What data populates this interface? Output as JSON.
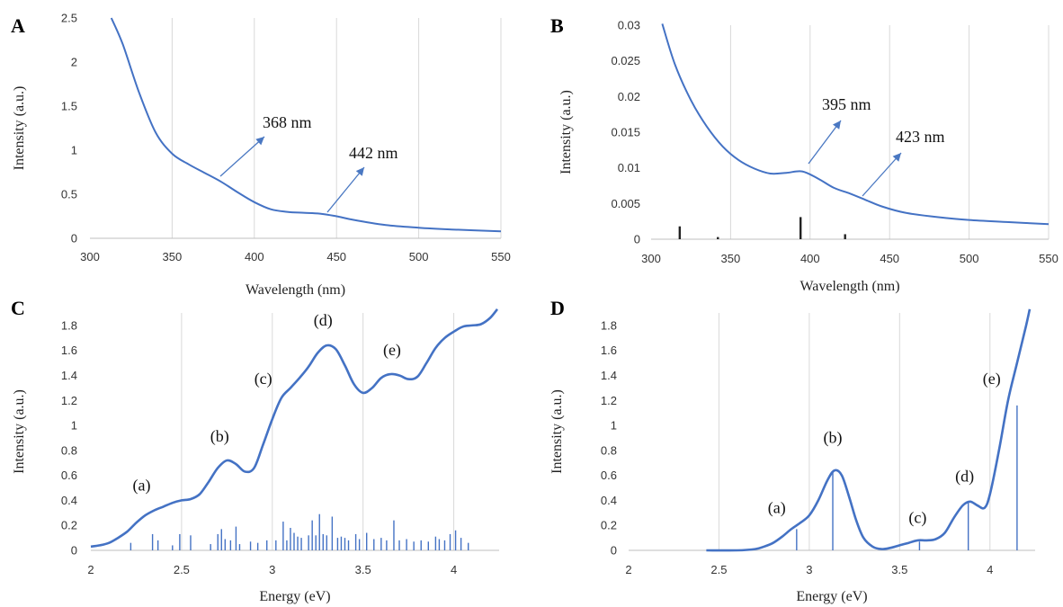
{
  "chart_data": [
    {
      "panel": "A",
      "type": "line",
      "xlabel": "Wavelength (nm)",
      "ylabel": "Intensity (a.u.)",
      "xlim": [
        300,
        550
      ],
      "ylim": [
        0,
        2.5
      ],
      "xticks": [
        300,
        350,
        400,
        450,
        500,
        550
      ],
      "yticks": [
        0,
        0.5,
        1,
        1.5,
        2,
        2.5
      ],
      "xtick_labels": [
        "300",
        "350",
        "400",
        "450",
        "500",
        "550"
      ],
      "ytick_labels": [
        "0",
        "0.5",
        "1",
        "1.5",
        "2",
        "2.5"
      ],
      "grid": "vertical",
      "series": [
        {
          "color": "#4472c4",
          "x": [
            313,
            320,
            330,
            340,
            350,
            360,
            370,
            380,
            390,
            400,
            410,
            420,
            430,
            440,
            450,
            460,
            480,
            500,
            520,
            550
          ],
          "y": [
            2.5,
            2.2,
            1.65,
            1.2,
            0.96,
            0.84,
            0.74,
            0.64,
            0.52,
            0.41,
            0.33,
            0.3,
            0.29,
            0.28,
            0.25,
            0.21,
            0.15,
            0.12,
            0.1,
            0.08
          ]
        }
      ],
      "annotations": [
        {
          "text": "368 nm",
          "x": 368
        },
        {
          "text": "442 nm",
          "x": 442
        }
      ]
    },
    {
      "panel": "B",
      "type": "line",
      "xlabel": "Wavelength (nm)",
      "ylabel": "Intensity (a.u.)",
      "xlim": [
        300,
        550
      ],
      "ylim": [
        0,
        0.03
      ],
      "xticks": [
        300,
        350,
        400,
        450,
        500,
        550
      ],
      "yticks": [
        0,
        0.005,
        0.01,
        0.015,
        0.02,
        0.025,
        0.03
      ],
      "xtick_labels": [
        "300",
        "350",
        "400",
        "450",
        "500",
        "550"
      ],
      "ytick_labels": [
        "0",
        "0.005",
        "0.01",
        "0.015",
        "0.02",
        "0.025",
        "0.03"
      ],
      "grid": "vertical",
      "series": [
        {
          "color": "#4472c4",
          "x": [
            307,
            315,
            325,
            335,
            345,
            355,
            365,
            375,
            385,
            395,
            405,
            415,
            425,
            435,
            445,
            460,
            480,
            500,
            525,
            550
          ],
          "y": [
            0.0302,
            0.0245,
            0.0195,
            0.0158,
            0.013,
            0.0111,
            0.0099,
            0.0092,
            0.0093,
            0.0095,
            0.0085,
            0.0072,
            0.0064,
            0.0055,
            0.0046,
            0.0037,
            0.0031,
            0.0027,
            0.0024,
            0.0021
          ]
        }
      ],
      "sticks": {
        "color": "#222222",
        "x": [
          318,
          342,
          394,
          422
        ],
        "y": [
          0.0018,
          0.0003,
          0.0031,
          0.0007
        ]
      },
      "annotations": [
        {
          "text": "395 nm",
          "x": 395
        },
        {
          "text": "423 nm",
          "x": 423
        }
      ]
    },
    {
      "panel": "C",
      "type": "line",
      "xlabel": "Energy (eV)",
      "ylabel": "Intensity (a.u.)",
      "xlim": [
        2,
        4.25
      ],
      "ylim": [
        0,
        1.9
      ],
      "xticks": [
        2,
        2.5,
        3,
        3.5,
        4
      ],
      "yticks": [
        0,
        0.2,
        0.4,
        0.6,
        0.8,
        1,
        1.2,
        1.4,
        1.6,
        1.8
      ],
      "xtick_labels": [
        "2",
        "2.5",
        "3",
        "3.5",
        "4"
      ],
      "ytick_labels": [
        "0",
        "0.2",
        "0.4",
        "0.6",
        "0.8",
        "1",
        "1.2",
        "1.4",
        "1.6",
        "1.8"
      ],
      "grid": "vertical",
      "series": [
        {
          "color": "#4472c4",
          "x": [
            2.0,
            2.05,
            2.1,
            2.15,
            2.2,
            2.25,
            2.3,
            2.35,
            2.4,
            2.45,
            2.5,
            2.55,
            2.6,
            2.65,
            2.7,
            2.75,
            2.8,
            2.85,
            2.9,
            2.95,
            3.0,
            3.05,
            3.1,
            3.15,
            3.2,
            3.25,
            3.3,
            3.35,
            3.4,
            3.45,
            3.5,
            3.55,
            3.6,
            3.65,
            3.7,
            3.75,
            3.8,
            3.85,
            3.9,
            3.95,
            4.0,
            4.05,
            4.1,
            4.15,
            4.2,
            4.24
          ],
          "y": [
            0.03,
            0.04,
            0.06,
            0.1,
            0.15,
            0.22,
            0.28,
            0.32,
            0.35,
            0.38,
            0.4,
            0.41,
            0.45,
            0.55,
            0.66,
            0.72,
            0.69,
            0.63,
            0.66,
            0.85,
            1.05,
            1.22,
            1.3,
            1.38,
            1.47,
            1.58,
            1.64,
            1.61,
            1.48,
            1.33,
            1.26,
            1.3,
            1.38,
            1.41,
            1.4,
            1.37,
            1.39,
            1.5,
            1.62,
            1.7,
            1.75,
            1.79,
            1.8,
            1.81,
            1.86,
            1.93
          ]
        }
      ],
      "sticks": {
        "color": "#4472c4",
        "x": [
          2.22,
          2.34,
          2.37,
          2.45,
          2.49,
          2.55,
          2.66,
          2.7,
          2.72,
          2.74,
          2.77,
          2.8,
          2.82,
          2.88,
          2.92,
          2.97,
          3.02,
          3.06,
          3.08,
          3.1,
          3.12,
          3.14,
          3.16,
          3.2,
          3.22,
          3.24,
          3.26,
          3.28,
          3.3,
          3.33,
          3.36,
          3.38,
          3.4,
          3.42,
          3.46,
          3.48,
          3.52,
          3.56,
          3.6,
          3.63,
          3.67,
          3.7,
          3.74,
          3.78,
          3.82,
          3.86,
          3.9,
          3.92,
          3.95,
          3.98,
          4.01,
          4.04,
          4.08
        ],
        "y": [
          0.06,
          0.13,
          0.08,
          0.04,
          0.13,
          0.12,
          0.05,
          0.13,
          0.17,
          0.09,
          0.08,
          0.19,
          0.05,
          0.07,
          0.06,
          0.08,
          0.08,
          0.23,
          0.08,
          0.18,
          0.14,
          0.11,
          0.1,
          0.12,
          0.24,
          0.12,
          0.29,
          0.13,
          0.12,
          0.27,
          0.1,
          0.11,
          0.1,
          0.08,
          0.13,
          0.09,
          0.14,
          0.09,
          0.1,
          0.08,
          0.24,
          0.08,
          0.09,
          0.07,
          0.08,
          0.07,
          0.11,
          0.09,
          0.08,
          0.13,
          0.16,
          0.1,
          0.06
        ]
      },
      "annotations": [
        {
          "text": "(a)",
          "x": 2.28,
          "y": 0.48
        },
        {
          "text": "(b)",
          "x": 2.71,
          "y": 0.87
        },
        {
          "text": "(c)",
          "x": 2.95,
          "y": 1.33
        },
        {
          "text": "(d)",
          "x": 3.28,
          "y": 1.8
        },
        {
          "text": "(e)",
          "x": 3.66,
          "y": 1.56
        }
      ]
    },
    {
      "panel": "D",
      "type": "line",
      "xlabel": "Energy (eV)",
      "ylabel": "Intensity (a.u.)",
      "xlim": [
        2,
        4.25
      ],
      "ylim": [
        0,
        1.9
      ],
      "xticks": [
        2,
        2.5,
        3,
        3.5,
        4
      ],
      "yticks": [
        0,
        0.2,
        0.4,
        0.6,
        0.8,
        1,
        1.2,
        1.4,
        1.6,
        1.8
      ],
      "xtick_labels": [
        "2",
        "2.5",
        "3",
        "3.5",
        "4"
      ],
      "ytick_labels": [
        "0",
        "0.2",
        "0.4",
        "0.6",
        "0.8",
        "1",
        "1.2",
        "1.4",
        "1.6",
        "1.8"
      ],
      "grid": "vertical",
      "series": [
        {
          "color": "#4472c4",
          "x": [
            2.43,
            2.6,
            2.7,
            2.75,
            2.8,
            2.85,
            2.9,
            2.95,
            3.0,
            3.05,
            3.1,
            3.14,
            3.18,
            3.22,
            3.26,
            3.3,
            3.35,
            3.4,
            3.45,
            3.5,
            3.55,
            3.6,
            3.65,
            3.7,
            3.75,
            3.8,
            3.85,
            3.89,
            3.93,
            3.97,
            4.0,
            4.05,
            4.1,
            4.15,
            4.2,
            4.22
          ],
          "y": [
            0.0,
            0.0,
            0.01,
            0.03,
            0.06,
            0.11,
            0.17,
            0.22,
            0.28,
            0.4,
            0.56,
            0.64,
            0.6,
            0.43,
            0.24,
            0.1,
            0.03,
            0.01,
            0.02,
            0.04,
            0.06,
            0.08,
            0.08,
            0.09,
            0.14,
            0.26,
            0.36,
            0.39,
            0.36,
            0.34,
            0.45,
            0.8,
            1.2,
            1.5,
            1.8,
            1.93
          ]
        }
      ],
      "sticks": {
        "color": "#4472c4",
        "x": [
          2.93,
          3.13,
          3.61,
          3.88,
          4.15
        ],
        "y": [
          0.17,
          0.63,
          0.07,
          0.38,
          1.16
        ]
      },
      "annotations": [
        {
          "text": "(a)",
          "x": 2.82,
          "y": 0.3
        },
        {
          "text": "(b)",
          "x": 3.13,
          "y": 0.86
        },
        {
          "text": "(c)",
          "x": 3.6,
          "y": 0.22
        },
        {
          "text": "(d)",
          "x": 3.86,
          "y": 0.55
        },
        {
          "text": "(e)",
          "x": 4.01,
          "y": 1.33
        }
      ]
    }
  ]
}
